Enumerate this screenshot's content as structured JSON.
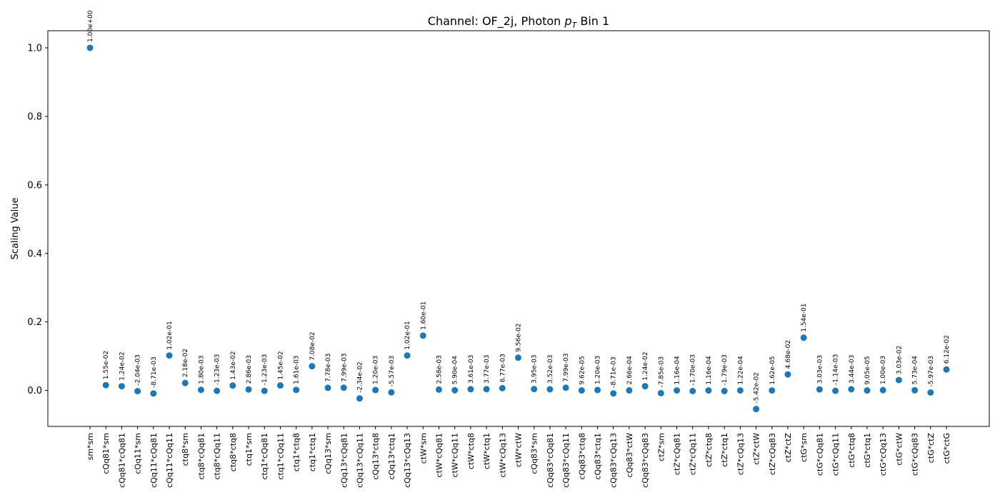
{
  "chart_data": {
    "type": "scatter",
    "title_prefix": "Channel: OF_2j, Photon ",
    "title_math_p": "p",
    "title_math_sub": "T",
    "title_suffix": " Bin 1",
    "xlabel": "",
    "ylabel": "Scaling Value",
    "ylim": [
      -0.105,
      1.05
    ],
    "yticks": [
      0.0,
      0.2,
      0.4,
      0.6,
      0.8,
      1.0
    ],
    "ytick_labels": [
      "0.0",
      "0.2",
      "0.4",
      "0.6",
      "0.8",
      "1.0"
    ],
    "marker_color": "#1f77b4",
    "grid": false,
    "categories": [
      "sm*sm",
      "cQq81*sm",
      "cQq81*cQq81",
      "cQq11*sm",
      "cQq11*cQq81",
      "cQq11*cQq11",
      "ctq8*sm",
      "ctq8*cQq81",
      "ctq8*cQq11",
      "ctq8*ctq8",
      "ctq1*sm",
      "ctq1*cQq81",
      "ctq1*cQq11",
      "ctq1*ctq8",
      "ctq1*ctq1",
      "cQq13*sm",
      "cQq13*cQq81",
      "cQq13*cQq11",
      "cQq13*ctq8",
      "cQq13*ctq1",
      "cQq13*cQq13",
      "ctW*sm",
      "ctW*cQq81",
      "ctW*cQq11",
      "ctW*ctq8",
      "ctW*ctq1",
      "ctW*cQq13",
      "ctW*ctW",
      "cQq83*sm",
      "cQq83*cQq81",
      "cQq83*cQq11",
      "cQq83*ctq8",
      "cQq83*ctq1",
      "cQq83*cQq13",
      "cQq83*ctW",
      "cQq83*cQq83",
      "ctZ*sm",
      "ctZ*cQq81",
      "ctZ*cQq11",
      "ctZ*ctq8",
      "ctZ*ctq1",
      "ctZ*cQq13",
      "ctZ*ctW",
      "ctZ*cQq83",
      "ctZ*ctZ",
      "ctG*sm",
      "ctG*cQq81",
      "ctG*cQq11",
      "ctG*ctq8",
      "ctG*ctq1",
      "ctG*cQq13",
      "ctG*ctW",
      "ctG*cQq83",
      "ctG*ctZ",
      "ctG*ctG"
    ],
    "values": [
      1.0,
      0.0155,
      0.0124,
      -0.00204,
      -0.00871,
      0.102,
      0.0218,
      0.0018,
      -0.00123,
      0.0143,
      0.00286,
      -0.00123,
      0.0145,
      0.00161,
      0.0708,
      0.00778,
      0.00799,
      -0.0234,
      0.0012,
      -0.00557,
      0.102,
      0.16,
      0.00258,
      0.00059,
      0.00361,
      0.00377,
      0.00677,
      0.0956,
      0.00395,
      0.00352,
      0.00799,
      9.62e-05,
      0.0012,
      -0.00871,
      0.000266,
      0.0124,
      -0.00785,
      0.000116,
      -0.0017,
      0.000116,
      -0.00179,
      0.000122,
      -0.0542,
      1.62e-05,
      0.0468,
      0.154,
      0.00303,
      -0.00114,
      0.00344,
      9.05e-05,
      0.001,
      0.0303,
      0.000573,
      -0.00597,
      0.0612
    ],
    "value_labels": [
      "1.00e+00",
      "1.55e-02",
      "1.24e-02",
      "-2.04e-03",
      "-8.71e-03",
      "1.02e-01",
      "2.18e-02",
      "1.80e-03",
      "-1.23e-03",
      "1.43e-02",
      "2.86e-03",
      "-1.23e-03",
      "1.45e-02",
      "1.61e-03",
      "7.08e-02",
      "7.78e-03",
      "7.99e-03",
      "-2.34e-02",
      "1.20e-03",
      "-5.57e-03",
      "1.02e-01",
      "1.60e-01",
      "2.58e-03",
      "5.90e-04",
      "3.61e-03",
      "3.77e-03",
      "6.77e-03",
      "9.56e-02",
      "3.95e-03",
      "3.52e-03",
      "7.99e-03",
      "9.62e-05",
      "1.20e-03",
      "-8.71e-03",
      "2.66e-04",
      "1.24e-02",
      "-7.85e-03",
      "1.16e-04",
      "-1.70e-03",
      "1.16e-04",
      "-1.79e-03",
      "1.22e-04",
      "-5.42e-02",
      "1.62e-05",
      "4.68e-02",
      "1.54e-01",
      "3.03e-03",
      "-1.14e-03",
      "3.44e-03",
      "9.05e-05",
      "1.00e-03",
      "3.03e-02",
      "5.73e-04",
      "-5.97e-03",
      "6.12e-02"
    ]
  }
}
